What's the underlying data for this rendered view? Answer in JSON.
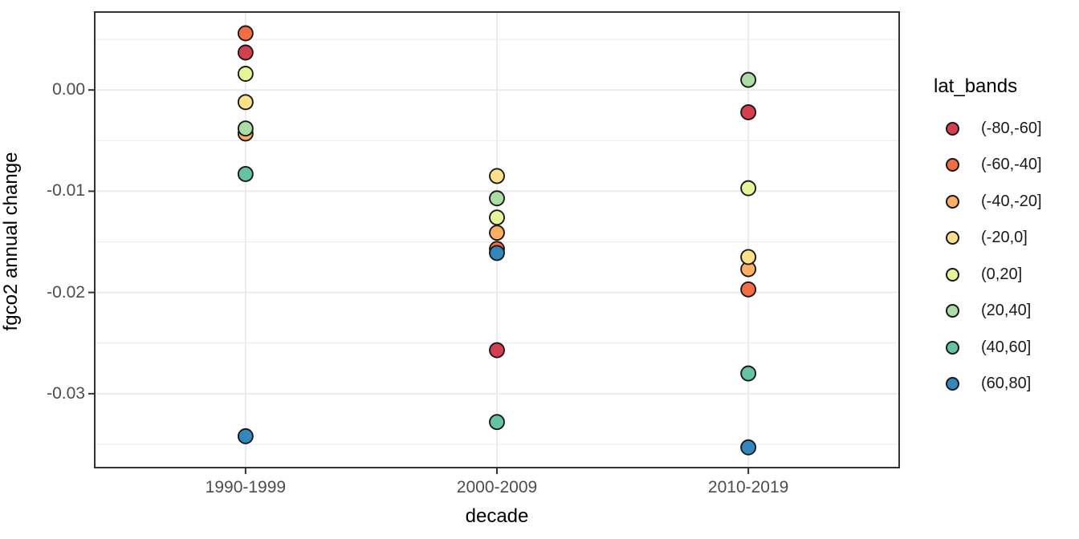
{
  "chart_data": {
    "type": "scatter",
    "title": "",
    "xlabel": "decade",
    "ylabel": "fgco2 annual change",
    "categories": [
      "1990-1999",
      "2000-2009",
      "2010-2019"
    ],
    "y_ticks": [
      0,
      -0.01,
      -0.02,
      -0.03
    ],
    "y_tick_labels": [
      "0.00",
      "-0.01",
      "-0.02",
      "-0.03"
    ],
    "y_minor_ticks": [
      0.005,
      -0.005,
      -0.015,
      -0.025,
      -0.035
    ],
    "ylim": [
      -0.0373,
      0.0077
    ],
    "grid": true,
    "panel_border": true,
    "legend": {
      "title": "lat_bands",
      "position": "right"
    },
    "series": [
      {
        "name": "(-80,-60]",
        "color": "#d53e4f",
        "values": [
          0.0037,
          -0.0257,
          -0.0022
        ]
      },
      {
        "name": "(-60,-40]",
        "color": "#f46d43",
        "values": [
          0.0056,
          -0.0157,
          -0.0197
        ]
      },
      {
        "name": "(-40,-20]",
        "color": "#fdae61",
        "values": [
          -0.0043,
          -0.0141,
          -0.0177
        ]
      },
      {
        "name": "(-20,0]",
        "color": "#fee08b",
        "values": [
          -0.0012,
          -0.0085,
          -0.0165
        ]
      },
      {
        "name": "(0,20]",
        "color": "#e6f598",
        "values": [
          0.0016,
          -0.0126,
          -0.0097
        ]
      },
      {
        "name": "(20,40]",
        "color": "#abdda4",
        "values": [
          -0.0038,
          -0.0107,
          0.001
        ]
      },
      {
        "name": "(40,60]",
        "color": "#66c2a5",
        "values": [
          -0.0083,
          -0.0328,
          -0.028
        ]
      },
      {
        "name": "(60,80]",
        "color": "#3288bd",
        "values": [
          -0.0342,
          -0.0161,
          -0.0353
        ]
      }
    ],
    "theme": {
      "background": "#ffffff",
      "grid_color": "#ebebeb",
      "panel_border_color": "#333333",
      "tick_color": "#333333",
      "tick_label_color": "#4d4d4d",
      "title_color": "#000000",
      "point_stroke": "#1a1a1a"
    }
  }
}
